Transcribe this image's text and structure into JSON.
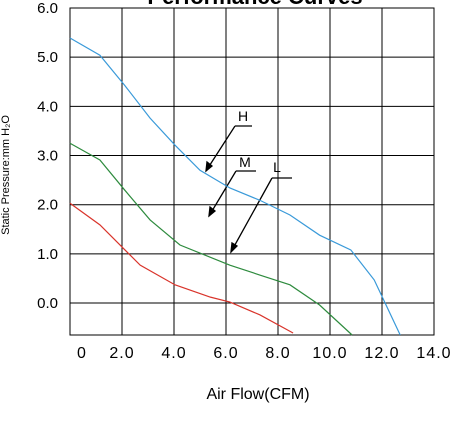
{
  "chart_data": {
    "type": "line",
    "title": "Performance Curves",
    "x_label": "Air Flow(CFM)",
    "y_label": "Static Pressure:mm H₂O",
    "xlim": [
      0,
      14
    ],
    "xticks": [
      {
        "value": 0,
        "label": "0"
      },
      {
        "value": 2,
        "label": "2.0"
      },
      {
        "value": 4,
        "label": "4.0"
      },
      {
        "value": 6,
        "label": "6.0"
      },
      {
        "value": 8,
        "label": "8.0"
      },
      {
        "value": 10,
        "label": "10.0"
      },
      {
        "value": 12,
        "label": "12.0"
      },
      {
        "value": 14,
        "label": "14.0"
      }
    ],
    "ylim": [
      -0.65,
      6.0
    ],
    "yticks": [
      {
        "value": 0,
        "label": "0.0"
      },
      {
        "value": 1,
        "label": "1.0"
      },
      {
        "value": 2,
        "label": "2.0"
      },
      {
        "value": 3,
        "label": "3.0"
      },
      {
        "value": 4,
        "label": "4.0"
      },
      {
        "value": 5,
        "label": "5.0"
      },
      {
        "value": 6,
        "label": "6.0"
      }
    ],
    "grid": true,
    "series": [
      {
        "name": "H",
        "color": "#3a9ad9",
        "x": [
          0,
          1.15,
          2.1,
          3.08,
          4.04,
          5.0,
          6.15,
          7.3,
          8.46,
          9.6,
          10.8,
          11.7,
          12.7
        ],
        "values": [
          5.39,
          5.04,
          4.43,
          3.76,
          3.21,
          2.7,
          2.34,
          2.09,
          1.79,
          1.38,
          1.08,
          0.47,
          -0.65
        ]
      },
      {
        "name": "M",
        "color": "#2e8b3e",
        "x": [
          0,
          1.15,
          2.1,
          3.08,
          4.23,
          6.15,
          7.3,
          8.46,
          9.6,
          10.85
        ],
        "values": [
          3.25,
          2.91,
          2.3,
          1.69,
          1.18,
          0.77,
          0.57,
          0.37,
          -0.04,
          -0.65
        ]
      },
      {
        "name": "L",
        "color": "#d9342b",
        "x": [
          0,
          1.15,
          2.7,
          4.04,
          5.4,
          6.15,
          7.3,
          8.58
        ],
        "values": [
          2.03,
          1.59,
          0.77,
          0.37,
          0.12,
          0.02,
          -0.24,
          -0.61
        ]
      }
    ]
  }
}
